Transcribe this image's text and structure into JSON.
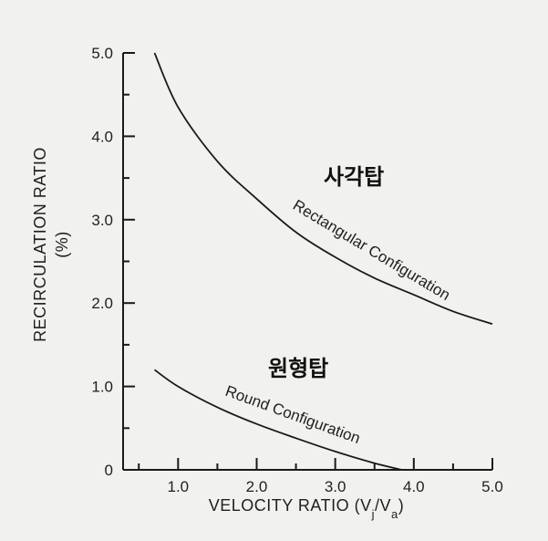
{
  "chart_data": {
    "type": "line",
    "xlabel": "VELOCITY RATIO (Vj/Va)",
    "ylabel_line1": "RECIRCULATION RATIO",
    "ylabel_line2": "(%)",
    "xlim": [
      0.3,
      5.0
    ],
    "ylim": [
      0,
      5.0
    ],
    "x_ticks": [
      1.0,
      2.0,
      3.0,
      4.0,
      5.0
    ],
    "x_tick_labels": [
      "1.0",
      "2.0",
      "3.0",
      "4.0",
      "5.0"
    ],
    "y_ticks": [
      0,
      1.0,
      2.0,
      3.0,
      4.0,
      5.0
    ],
    "y_tick_labels": [
      "0",
      "1.0",
      "2.0",
      "3.0",
      "4.0",
      "5.0"
    ],
    "grid": false,
    "series": [
      {
        "name": "Rectangular Configuration",
        "annotation": "사각탑",
        "x": [
          0.7,
          1.0,
          1.5,
          2.0,
          2.5,
          3.0,
          3.5,
          4.0,
          4.5,
          5.0
        ],
        "y": [
          5.0,
          4.35,
          3.7,
          3.25,
          2.85,
          2.55,
          2.3,
          2.1,
          1.9,
          1.75
        ]
      },
      {
        "name": "Round Configuration",
        "annotation": "원형탑",
        "x": [
          0.7,
          1.0,
          1.5,
          2.0,
          2.5,
          3.0,
          3.5,
          3.85
        ],
        "y": [
          1.2,
          1.0,
          0.75,
          0.55,
          0.38,
          0.22,
          0.08,
          0.0
        ]
      }
    ]
  }
}
